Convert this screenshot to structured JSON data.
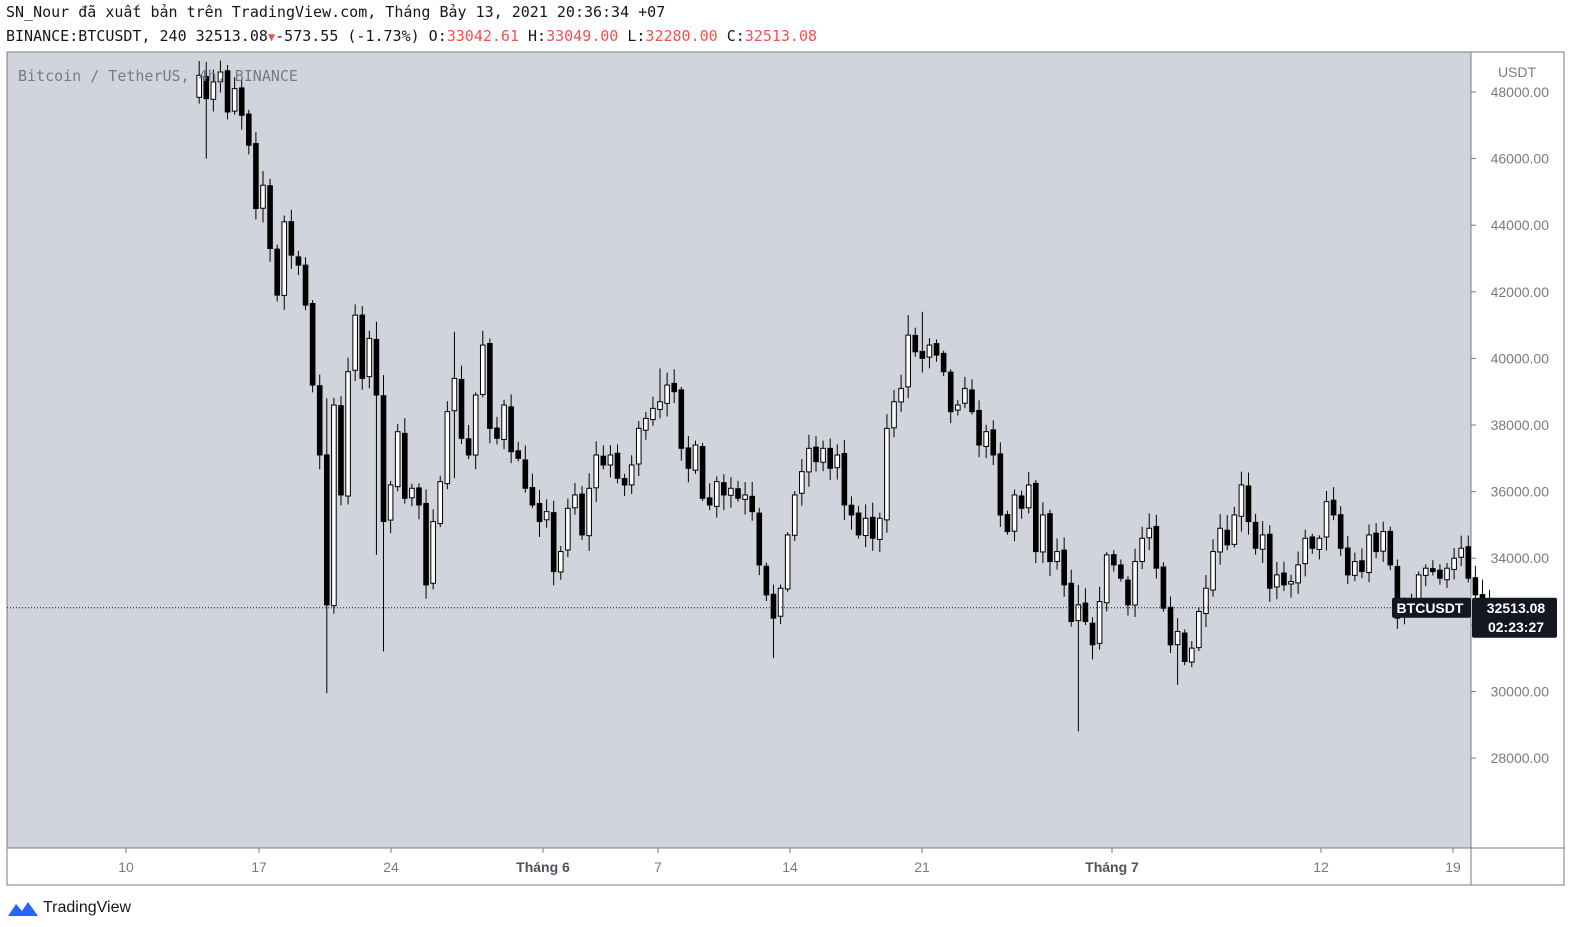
{
  "header": {
    "line1": "SN_Nour đã xuất bản trên TradingView.com, Tháng Bảy 13, 2021 20:36:34 +07",
    "symbol": "BINANCE:BTCUSDT, 240",
    "last": "32513.08",
    "change": "-573.55 (-1.73%)",
    "o_label": "O:",
    "o_value": "33042.61",
    "h_label": "H:",
    "h_value": "33049.00",
    "l_label": "L:",
    "l_value": "32280.00",
    "c_label": "C:",
    "c_value": "32513.08"
  },
  "chart_data": {
    "type": "candlestick",
    "title": "Bitcoin / TetherUS, 4h, BINANCE",
    "price_axis_unit": "USDT",
    "y_ticks": [
      28000,
      30000,
      32000,
      34000,
      36000,
      38000,
      40000,
      42000,
      44000,
      46000,
      48000
    ],
    "y_tick_labels": [
      "28000.00",
      "30000.00",
      "32000.00",
      "34000.00",
      "36000.00",
      "38000.00",
      "40000.00",
      "42000.00",
      "44000.00",
      "46000.00",
      "48000.00"
    ],
    "x_ticks": [
      "10",
      "17",
      "24",
      "Tháng 6",
      "7",
      "14",
      "21",
      "Tháng 7",
      "12",
      "19"
    ],
    "bold_x_ticks": [
      "Tháng 6",
      "Tháng 7"
    ],
    "y_range": [
      25300,
      49200
    ],
    "last_price": 32513.08,
    "last_price_label": "32513.08",
    "symbol_label": "BTCUSDT",
    "countdown": "02:23:27",
    "anchors": [
      [
        0,
        47900
      ],
      [
        2,
        48500
      ],
      [
        3,
        47800
      ],
      [
        4,
        48300
      ],
      [
        5,
        48600
      ],
      [
        6,
        47400
      ],
      [
        7,
        48100
      ],
      [
        8,
        47300
      ],
      [
        9,
        46400
      ],
      [
        10,
        44500
      ],
      [
        11,
        45200
      ],
      [
        12,
        43300
      ],
      [
        13,
        41900
      ],
      [
        14,
        44100
      ],
      [
        15,
        43100
      ],
      [
        16,
        42800
      ],
      [
        17,
        41600
      ],
      [
        18,
        39200
      ],
      [
        19,
        37100
      ],
      [
        20,
        32600
      ],
      [
        21,
        38600
      ],
      [
        22,
        35900
      ],
      [
        23,
        39600
      ],
      [
        24,
        41300
      ],
      [
        25,
        39400
      ],
      [
        26,
        40600
      ],
      [
        27,
        38900
      ],
      [
        28,
        35100
      ],
      [
        29,
        36200
      ],
      [
        30,
        37800
      ],
      [
        31,
        35800
      ],
      [
        32,
        36100
      ],
      [
        33,
        35600
      ],
      [
        34,
        33200
      ],
      [
        35,
        35100
      ],
      [
        36,
        36300
      ],
      [
        37,
        38400
      ],
      [
        38,
        39400
      ],
      [
        39,
        37600
      ],
      [
        40,
        37100
      ],
      [
        41,
        38900
      ],
      [
        42,
        40400
      ],
      [
        43,
        37900
      ],
      [
        44,
        37600
      ],
      [
        45,
        38600
      ],
      [
        46,
        37200
      ],
      [
        47,
        37000
      ],
      [
        48,
        36100
      ],
      [
        49,
        35600
      ],
      [
        50,
        35100
      ],
      [
        51,
        35400
      ],
      [
        52,
        33600
      ],
      [
        53,
        34200
      ],
      [
        54,
        35500
      ],
      [
        55,
        35900
      ],
      [
        56,
        34700
      ],
      [
        57,
        36100
      ],
      [
        58,
        37100
      ],
      [
        59,
        36800
      ],
      [
        60,
        37100
      ],
      [
        61,
        36400
      ],
      [
        62,
        36200
      ],
      [
        63,
        36800
      ],
      [
        64,
        37900
      ],
      [
        65,
        38200
      ],
      [
        66,
        38500
      ],
      [
        67,
        38700
      ],
      [
        68,
        39200
      ],
      [
        69,
        39000
      ],
      [
        70,
        37300
      ],
      [
        71,
        36700
      ],
      [
        72,
        37400
      ],
      [
        73,
        35800
      ],
      [
        74,
        35600
      ],
      [
        75,
        36300
      ],
      [
        76,
        35900
      ],
      [
        77,
        36100
      ],
      [
        78,
        35800
      ],
      [
        79,
        35900
      ],
      [
        80,
        35400
      ],
      [
        81,
        33800
      ],
      [
        82,
        32900
      ],
      [
        83,
        32200
      ],
      [
        84,
        33100
      ],
      [
        85,
        34700
      ],
      [
        86,
        35900
      ],
      [
        87,
        36600
      ],
      [
        88,
        37300
      ],
      [
        89,
        36900
      ],
      [
        90,
        37300
      ],
      [
        91,
        36700
      ],
      [
        92,
        37100
      ],
      [
        93,
        35600
      ],
      [
        94,
        35300
      ],
      [
        95,
        34700
      ],
      [
        96,
        35200
      ],
      [
        97,
        34600
      ],
      [
        98,
        35200
      ],
      [
        99,
        37900
      ],
      [
        100,
        38700
      ],
      [
        101,
        39100
      ],
      [
        102,
        40700
      ],
      [
        103,
        40200
      ],
      [
        104,
        40000
      ],
      [
        105,
        40400
      ],
      [
        106,
        40100
      ],
      [
        107,
        39600
      ],
      [
        108,
        38400
      ],
      [
        109,
        38600
      ],
      [
        110,
        39100
      ],
      [
        111,
        38400
      ],
      [
        112,
        37400
      ],
      [
        113,
        37800
      ],
      [
        114,
        37100
      ],
      [
        115,
        35300
      ],
      [
        116,
        34800
      ],
      [
        117,
        35900
      ],
      [
        118,
        35500
      ],
      [
        119,
        36200
      ],
      [
        120,
        34200
      ],
      [
        121,
        35300
      ],
      [
        122,
        33900
      ],
      [
        123,
        34200
      ],
      [
        124,
        33200
      ],
      [
        125,
        32100
      ],
      [
        126,
        32600
      ],
      [
        127,
        32100
      ],
      [
        128,
        31400
      ],
      [
        129,
        32700
      ],
      [
        130,
        34100
      ],
      [
        131,
        33800
      ],
      [
        132,
        33400
      ],
      [
        133,
        32600
      ],
      [
        134,
        33900
      ],
      [
        135,
        34600
      ],
      [
        136,
        34900
      ],
      [
        137,
        33700
      ],
      [
        138,
        32500
      ],
      [
        139,
        31400
      ],
      [
        140,
        31800
      ],
      [
        141,
        30900
      ],
      [
        142,
        31300
      ],
      [
        143,
        32400
      ],
      [
        144,
        33100
      ],
      [
        145,
        34200
      ],
      [
        146,
        34900
      ],
      [
        147,
        34400
      ],
      [
        148,
        35300
      ],
      [
        149,
        36200
      ],
      [
        150,
        35100
      ],
      [
        151,
        34300
      ],
      [
        152,
        34700
      ],
      [
        153,
        33100
      ],
      [
        154,
        33500
      ],
      [
        155,
        33200
      ],
      [
        156,
        33300
      ],
      [
        157,
        33800
      ],
      [
        158,
        34600
      ],
      [
        159,
        34300
      ],
      [
        160,
        34600
      ],
      [
        161,
        35700
      ],
      [
        162,
        35300
      ],
      [
        163,
        34300
      ],
      [
        164,
        33500
      ],
      [
        165,
        33900
      ],
      [
        166,
        33600
      ],
      [
        167,
        34700
      ],
      [
        168,
        34200
      ],
      [
        169,
        34800
      ],
      [
        170,
        33800
      ],
      [
        171,
        32200
      ],
      [
        172,
        32500
      ],
      [
        173,
        32700
      ],
      [
        174,
        33500
      ],
      [
        175,
        33700
      ],
      [
        176,
        33600
      ],
      [
        177,
        33400
      ],
      [
        178,
        33700
      ],
      [
        179,
        34000
      ],
      [
        180,
        34300
      ],
      [
        181,
        33400
      ],
      [
        182,
        32900
      ],
      [
        183,
        32700
      ],
      [
        184,
        32513
      ]
    ],
    "spikes": [
      [
        3,
        46000,
        48900
      ],
      [
        20,
        29950,
        38800
      ],
      [
        27,
        34100,
        41100
      ],
      [
        28,
        31200,
        39500
      ],
      [
        38,
        36400,
        40800
      ],
      [
        67,
        38200,
        39700
      ],
      [
        83,
        31000,
        32700
      ],
      [
        102,
        39800,
        41300
      ],
      [
        104,
        39600,
        41400
      ],
      [
        126,
        28800,
        33200
      ],
      [
        140,
        30200,
        32200
      ],
      [
        149,
        34800,
        36600
      ],
      [
        184,
        32250,
        33050
      ]
    ]
  },
  "branding": {
    "name": "TradingView"
  }
}
